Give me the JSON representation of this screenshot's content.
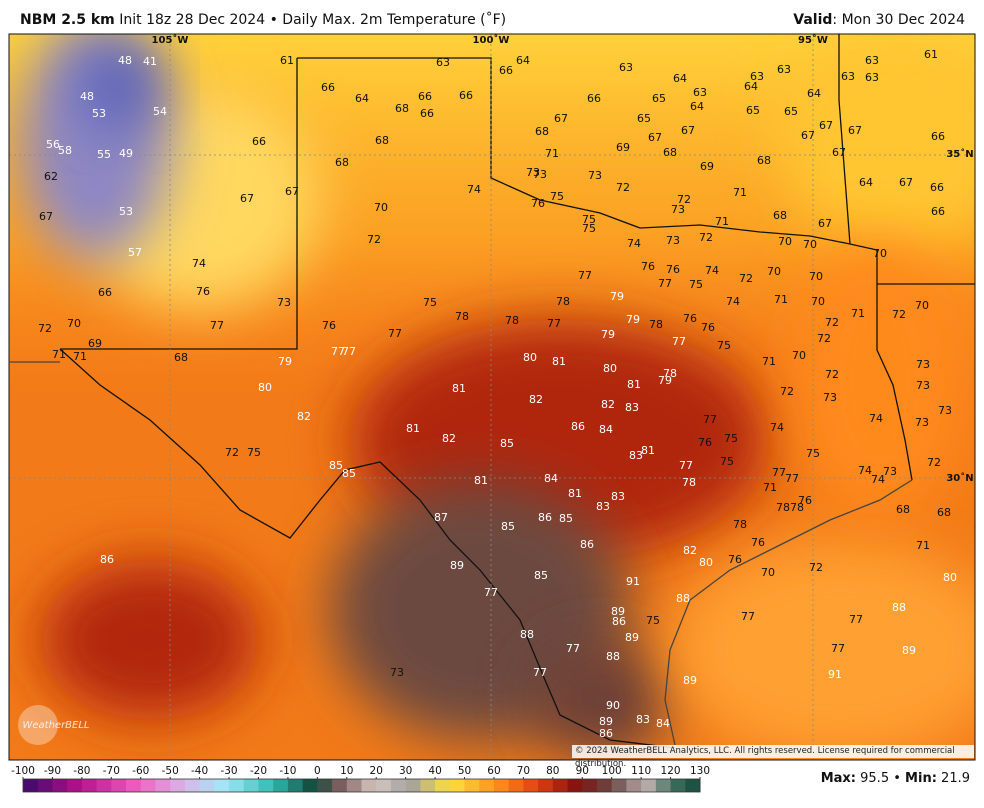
{
  "header": {
    "model": "NBM 2.5 km",
    "init": "Init 18z 28 Dec 2024",
    "separator": "•",
    "field": "Daily Max. 2m Temperature (˚F)",
    "valid_label": "Valid",
    "valid_date": ": Mon 30 Dec 2024"
  },
  "grid_labels": {
    "lon": [
      "105˚W",
      "100˚W",
      "95˚W"
    ],
    "lat": [
      "35˚N",
      "30˚N"
    ]
  },
  "logo": "WeatherBELL",
  "copyright": "© 2024 WeatherBELL Analytics, LLC. All rights reserved. License required for commercial distribution.",
  "colorbar_ticks": [
    -100,
    -90,
    -80,
    -70,
    -60,
    -50,
    -40,
    -30,
    -20,
    -10,
    0,
    10,
    20,
    30,
    40,
    50,
    60,
    70,
    80,
    90,
    100,
    110,
    120,
    130
  ],
  "footer": {
    "max_label": "Max:",
    "max_value": 95.5,
    "separator": "•",
    "min_label": "Min:",
    "min_value": 21.9
  },
  "stations": [
    48,
    41,
    48,
    53,
    54,
    56,
    58,
    55,
    49,
    62,
    53,
    67,
    57,
    66,
    72,
    70,
    71,
    71,
    69,
    61,
    66,
    64,
    68,
    66,
    66,
    66,
    63,
    66,
    64,
    63,
    64,
    63,
    63,
    64,
    63,
    63,
    63,
    63,
    61,
    64,
    66,
    65,
    64,
    65,
    65,
    67,
    67,
    67,
    67,
    66,
    67,
    65,
    68,
    67,
    67,
    69,
    68,
    71,
    69,
    68,
    66,
    68,
    68,
    73,
    73,
    73,
    72,
    64,
    67,
    66,
    66,
    74,
    75,
    76,
    72,
    73,
    71,
    67,
    67,
    70,
    68,
    75,
    75,
    71,
    72,
    67,
    72,
    74,
    73,
    70,
    70,
    70,
    74,
    76,
    76,
    74,
    72,
    70,
    70,
    77,
    77,
    75,
    76,
    73,
    75,
    78,
    79,
    74,
    71,
    70,
    70,
    78,
    78,
    77,
    79,
    71,
    72,
    77,
    76,
    77,
    79,
    78,
    76,
    76,
    72,
    77,
    77,
    77,
    75,
    72,
    68,
    79,
    80,
    81,
    71,
    70,
    80,
    78,
    79,
    81,
    72,
    73,
    80,
    81,
    82,
    72,
    73,
    73,
    82,
    82,
    83,
    73,
    81,
    86,
    84,
    77,
    74,
    73,
    82,
    85,
    74,
    75,
    76,
    81,
    83,
    72,
    75,
    75,
    72,
    85,
    85,
    77,
    75,
    74,
    74,
    73,
    84,
    81,
    78,
    77,
    77,
    71,
    81,
    83,
    83,
    76,
    78,
    78,
    87,
    86,
    85,
    85,
    68,
    68,
    78,
    86,
    76,
    71,
    82,
    80,
    76,
    70,
    72,
    80,
    86,
    89,
    85,
    91,
    77,
    88,
    89,
    86,
    75,
    77,
    77,
    88,
    89,
    88,
    77,
    77,
    89,
    88,
    77,
    91,
    73,
    89,
    90,
    89,
    86,
    83,
    84
  ]
}
